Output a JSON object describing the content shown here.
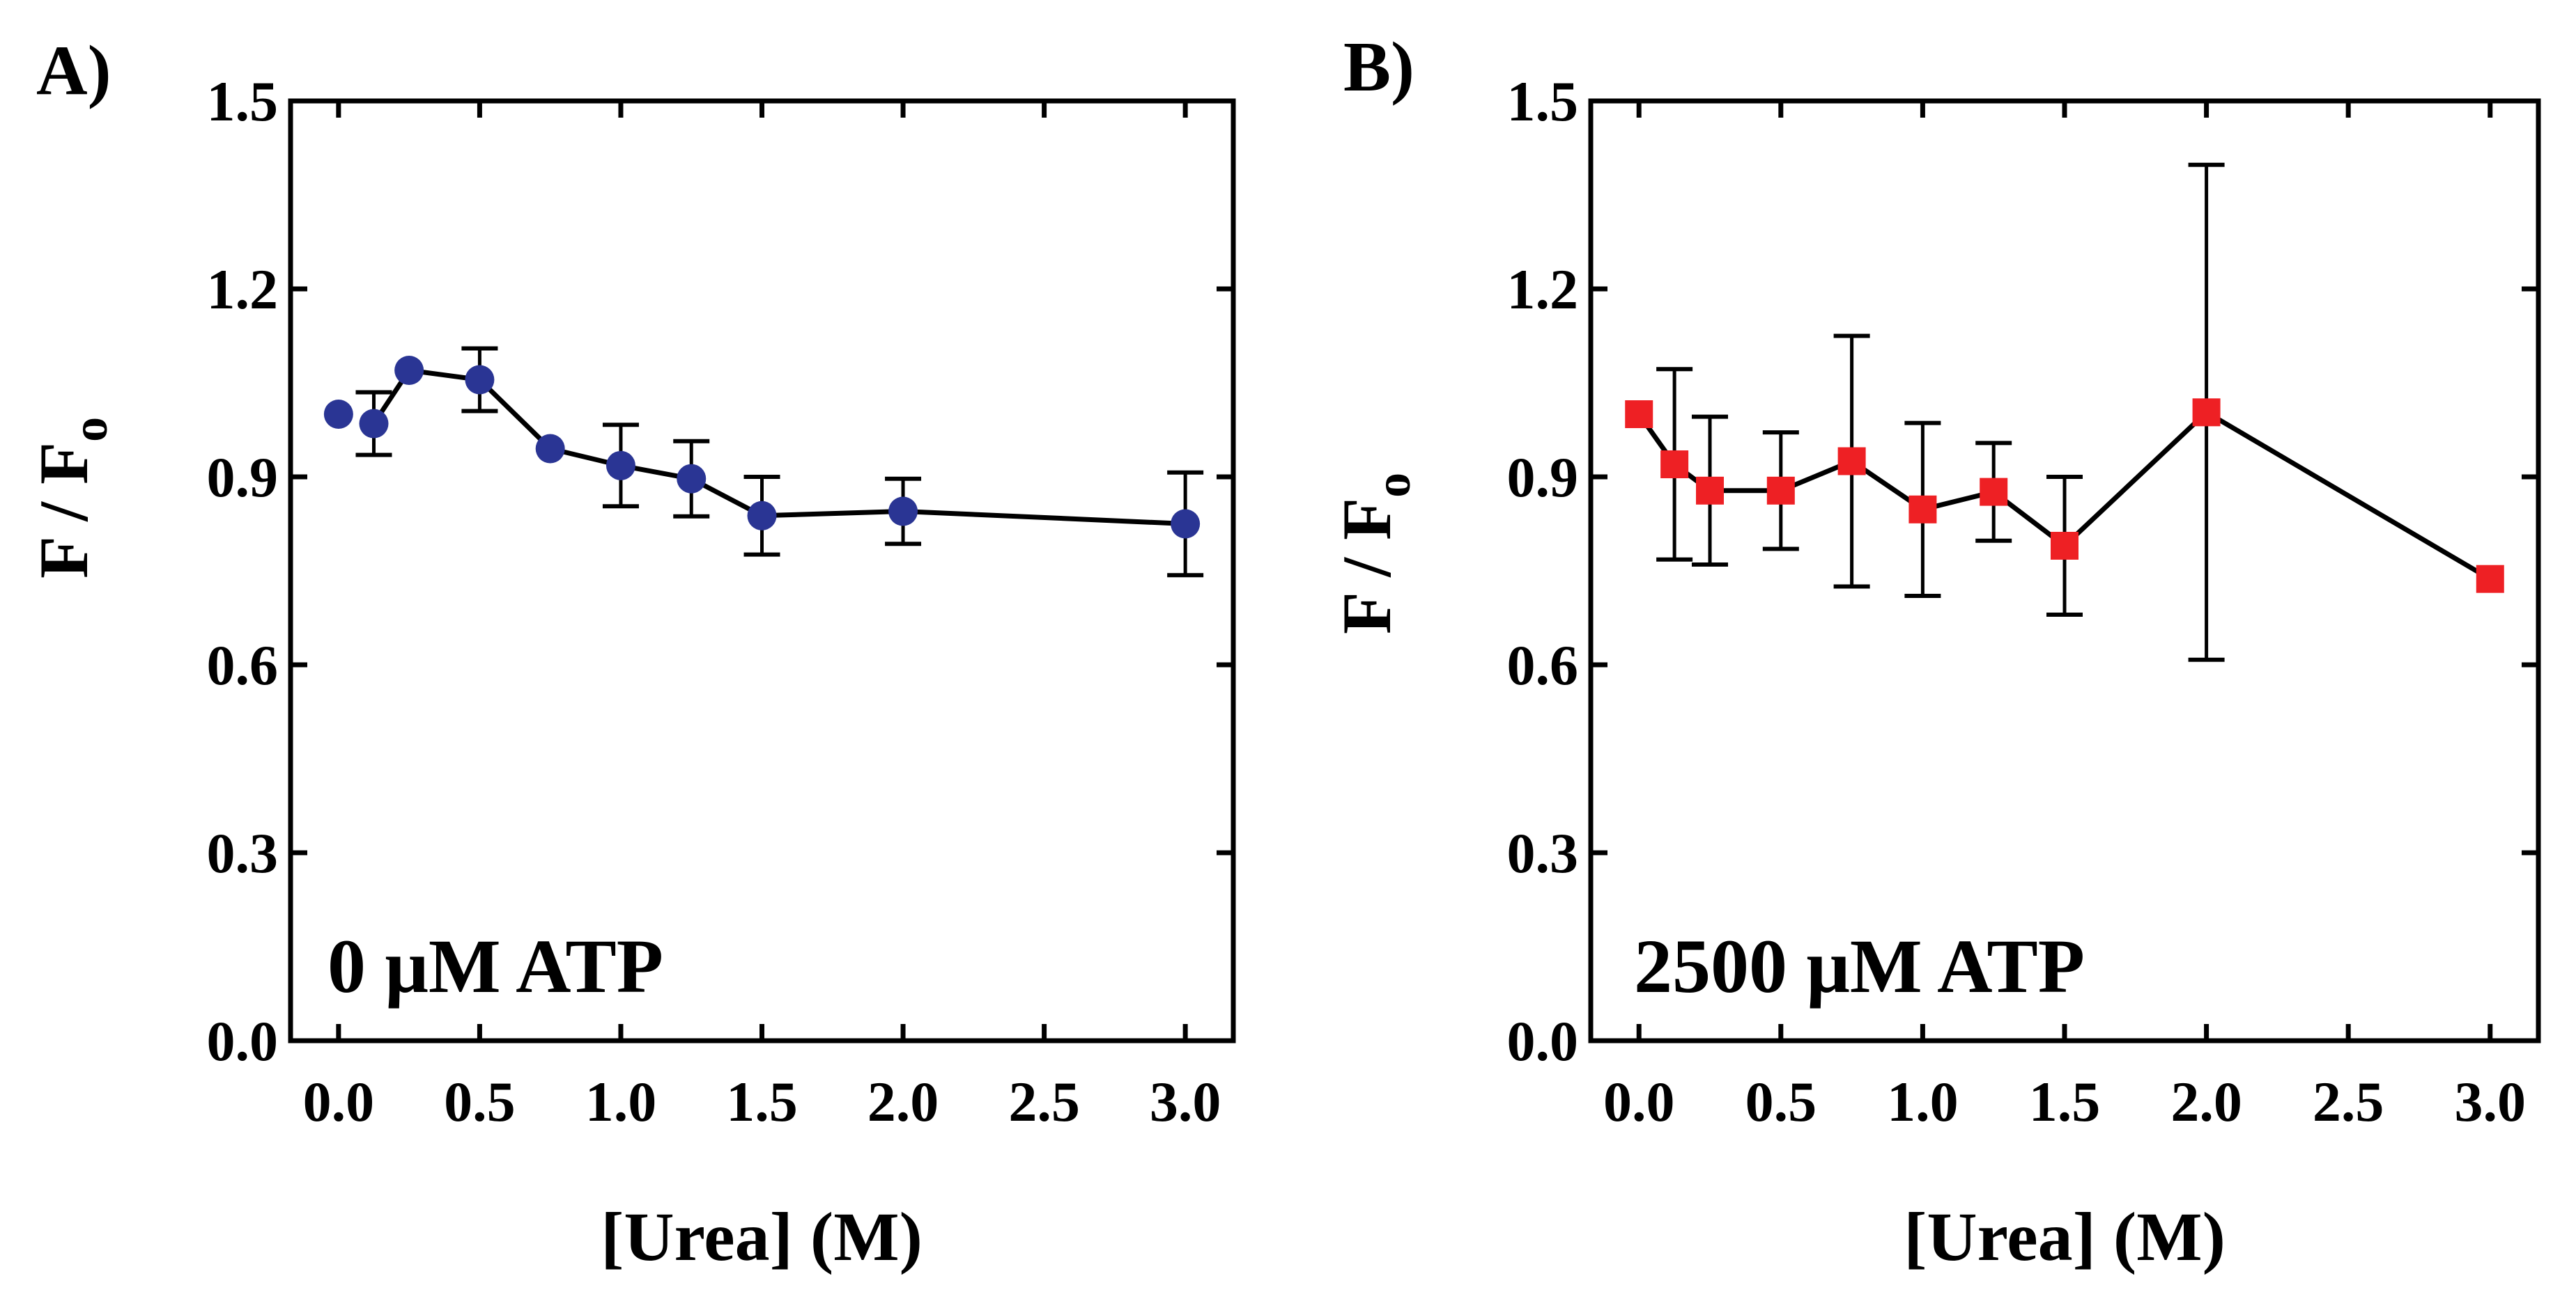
{
  "chart_data": [
    {
      "type": "scatter",
      "panel_label": "A)",
      "annotation": "0 μM ATP",
      "xlabel": "[Urea] (M)",
      "ylabel": "F / F",
      "ylabel_sub": "o",
      "xlim": [
        -0.17,
        3.17
      ],
      "ylim": [
        0.0,
        1.5
      ],
      "x_ticks": [
        0.0,
        0.5,
        1.0,
        1.5,
        2.0,
        2.5,
        3.0
      ],
      "x_tick_labels": [
        "0.0",
        "0.5",
        "1.0",
        "1.5",
        "2.0",
        "2.5",
        "3.0"
      ],
      "y_ticks": [
        0.0,
        0.3,
        0.6,
        0.9,
        1.2,
        1.5
      ],
      "y_tick_labels": [
        "0.0",
        "0.3",
        "0.6",
        "0.9",
        "1.2",
        "1.5"
      ],
      "grid": false,
      "series": [
        {
          "marker": "circle",
          "color": "#2a3594",
          "x": [
            0.0,
            0.125,
            0.25,
            0.5,
            0.75,
            1.0,
            1.25,
            1.5,
            2.0,
            3.0
          ],
          "y": [
            1.0,
            0.985,
            1.07,
            1.055,
            0.945,
            0.918,
            0.897,
            0.838,
            0.845,
            0.825
          ],
          "err": [
            0,
            0.05,
            0,
            0.05,
            0,
            0.065,
            0.06,
            0.062,
            0.052,
            0.082
          ],
          "connect_from": 1
        }
      ]
    },
    {
      "type": "scatter",
      "panel_label": "B)",
      "annotation": "2500 μM ATP",
      "xlabel": "[Urea] (M)",
      "ylabel": "F / F",
      "ylabel_sub": "o",
      "xlim": [
        -0.17,
        3.17
      ],
      "ylim": [
        0.0,
        1.5
      ],
      "x_ticks": [
        0.0,
        0.5,
        1.0,
        1.5,
        2.0,
        2.5,
        3.0
      ],
      "x_tick_labels": [
        "0.0",
        "0.5",
        "1.0",
        "1.5",
        "2.0",
        "2.5",
        "3.0"
      ],
      "y_ticks": [
        0.0,
        0.3,
        0.6,
        0.9,
        1.2,
        1.5
      ],
      "y_tick_labels": [
        "0.0",
        "0.3",
        "0.6",
        "0.9",
        "1.2",
        "1.5"
      ],
      "grid": false,
      "series": [
        {
          "marker": "square",
          "color": "#ee2024",
          "x": [
            0.0,
            0.125,
            0.25,
            0.5,
            0.75,
            1.0,
            1.25,
            1.5,
            2.0,
            3.0
          ],
          "y": [
            1.0,
            0.92,
            0.878,
            0.878,
            0.925,
            0.848,
            0.876,
            0.79,
            1.003,
            0.737
          ],
          "err": [
            0,
            0.152,
            0.118,
            0.093,
            0.2,
            0.138,
            0.078,
            0.11,
            0.395,
            0
          ],
          "connect_from": 0
        }
      ]
    }
  ]
}
